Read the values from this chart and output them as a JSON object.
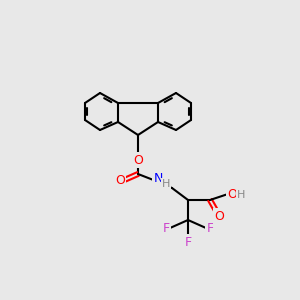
{
  "bg_color": "#e8e8e8",
  "bond_color": "#000000",
  "bond_lw": 1.5,
  "atom_colors": {
    "F": "#cc44cc",
    "O": "#ff0000",
    "N": "#0000ff",
    "H_gray": "#666666",
    "C": "#000000"
  },
  "font_size_atom": 9,
  "font_size_small": 8
}
